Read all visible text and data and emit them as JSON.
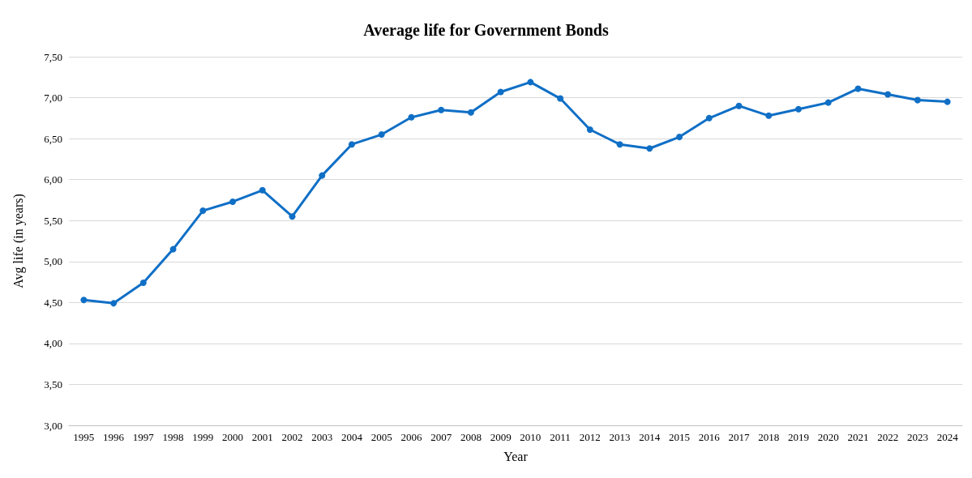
{
  "chart_data": {
    "type": "line",
    "title": "Average life for Government Bonds",
    "xlabel": "Year",
    "ylabel": "Avg life (in years)",
    "categories": [
      "1995",
      "1996",
      "1997",
      "1998",
      "1999",
      "2000",
      "2001",
      "2002",
      "2003",
      "2004",
      "2005",
      "2006",
      "2007",
      "2008",
      "2009",
      "2010",
      "2011",
      "2012",
      "2013",
      "2014",
      "2015",
      "2016",
      "2017",
      "2018",
      "2019",
      "2020",
      "2021",
      "2022",
      "2023",
      "2024"
    ],
    "series": [
      {
        "color": "#0f6fc6",
        "values": [
          4.53,
          4.49,
          4.74,
          5.15,
          5.62,
          5.73,
          5.87,
          5.55,
          6.05,
          6.43,
          6.55,
          6.76,
          6.85,
          6.82,
          7.07,
          7.19,
          6.99,
          6.61,
          6.43,
          6.38,
          6.52,
          6.75,
          6.9,
          6.78,
          6.86,
          6.94,
          7.11,
          7.04,
          6.97,
          6.95
        ]
      }
    ],
    "ylim": [
      3,
      7.5
    ],
    "yticks": [
      {
        "value": 3,
        "label": "3,00"
      },
      {
        "value": 3.5,
        "label": "3,50"
      },
      {
        "value": 4,
        "label": "4,00"
      },
      {
        "value": 4.5,
        "label": "4,50"
      },
      {
        "value": 5,
        "label": "5,00"
      },
      {
        "value": 5.5,
        "label": "5,50"
      },
      {
        "value": 6,
        "label": "6,00"
      },
      {
        "value": 6.5,
        "label": "6,50"
      },
      {
        "value": 7,
        "label": "7,00"
      },
      {
        "value": 7.5,
        "label": "7,50"
      }
    ],
    "grid": "y",
    "marker": "circle",
    "line_style": "solid"
  }
}
